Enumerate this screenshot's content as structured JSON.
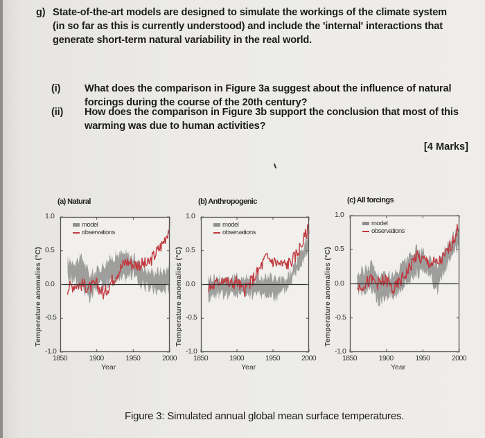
{
  "question": {
    "label": "g)",
    "lines": [
      "State-of-the-art models are designed to simulate the workings of the climate system",
      "(in so far as this is currently understood) and include the 'internal' interactions that",
      "generate short-term natural variability in the real world."
    ],
    "parts": [
      {
        "num": "(i)",
        "lines": [
          "What does the comparison in Figure 3a suggest about the influence of natural",
          "forcings during the course of the 20th century?"
        ]
      },
      {
        "num": "(ii)",
        "lines": [
          "How does the comparison in Figure 3b support the conclusion that most of this",
          "warming was due to human activities?"
        ]
      }
    ],
    "marks": "[4 Marks]"
  },
  "figure": {
    "caption": "Figure 3: Simulated annual global mean surface temperatures.",
    "colors": {
      "model": "#8f8f8f",
      "observations": "#c0393f",
      "frame": "#555555",
      "zero_line": "#333333"
    }
  },
  "chart_data": [
    {
      "type": "line",
      "title": "(a) Natural",
      "xlabel": "Year",
      "ylabel": "Temperature anomalies (°C)",
      "xlim": [
        1850,
        2000
      ],
      "ylim": [
        -1.0,
        1.0
      ],
      "xticks": [
        "1850",
        "1900",
        "1950",
        "2000"
      ],
      "yticks": [
        "1.0",
        "0.5",
        "0.0",
        "-0.5",
        "-1.0"
      ],
      "legend": [
        "model",
        "observations"
      ],
      "legend_position": "upper left",
      "grid": false,
      "x": [
        1860,
        1870,
        1880,
        1890,
        1900,
        1910,
        1920,
        1930,
        1940,
        1950,
        1960,
        1970,
        1980,
        1990,
        2000
      ],
      "series": [
        {
          "name": "model",
          "style": "band",
          "low": [
            0.1,
            0.05,
            0.0,
            -0.25,
            -0.05,
            0.0,
            0.05,
            0.05,
            0.1,
            0.15,
            0.0,
            -0.05,
            -0.1,
            -0.1,
            -0.05
          ],
          "high": [
            0.35,
            0.35,
            0.4,
            0.15,
            0.2,
            0.3,
            0.4,
            0.45,
            0.45,
            0.4,
            0.3,
            0.2,
            0.2,
            0.2,
            0.25
          ]
        },
        {
          "name": "observations",
          "values": [
            -0.05,
            0.0,
            0.0,
            -0.05,
            0.0,
            -0.15,
            0.05,
            0.2,
            0.35,
            0.3,
            0.3,
            0.3,
            0.45,
            0.6,
            0.85
          ]
        }
      ]
    },
    {
      "type": "line",
      "title": "(b) Anthropogenic",
      "xlabel": "Year",
      "ylabel": "Temperature anomalies (°C)",
      "xlim": [
        1850,
        2000
      ],
      "ylim": [
        -1.0,
        1.0
      ],
      "xticks": [
        "1850",
        "1900",
        "1950",
        "2000"
      ],
      "yticks": [
        "1.0",
        "0.5",
        "0.0",
        "-0.5",
        "-1.0"
      ],
      "legend": [
        "model",
        "observations"
      ],
      "legend_position": "upper left",
      "grid": false,
      "x": [
        1860,
        1870,
        1880,
        1890,
        1900,
        1910,
        1920,
        1930,
        1940,
        1950,
        1960,
        1970,
        1980,
        1990,
        2000
      ],
      "series": [
        {
          "name": "model",
          "style": "band",
          "low": [
            -0.2,
            -0.15,
            -0.15,
            -0.15,
            -0.15,
            -0.15,
            -0.15,
            -0.15,
            -0.15,
            -0.2,
            -0.15,
            -0.05,
            0.15,
            0.35,
            0.55
          ],
          "high": [
            0.1,
            0.1,
            0.1,
            0.1,
            0.1,
            0.1,
            0.1,
            0.1,
            0.1,
            0.1,
            0.05,
            0.1,
            0.3,
            0.5,
            0.75
          ]
        },
        {
          "name": "observations",
          "values": [
            -0.05,
            0.0,
            0.1,
            0.0,
            0.05,
            -0.1,
            0.05,
            0.2,
            0.4,
            0.35,
            0.3,
            0.3,
            0.4,
            0.6,
            0.85
          ]
        }
      ]
    },
    {
      "type": "line",
      "title": "(c) All forcings",
      "xlabel": "Year",
      "ylabel": "Temperature anomalies (°C)",
      "xlim": [
        1850,
        2000
      ],
      "ylim": [
        -1.0,
        1.0
      ],
      "xticks": [
        "1850",
        "1900",
        "1950",
        "2000"
      ],
      "yticks": [
        "1.0",
        "0.5",
        "0.0",
        "-0.5",
        "-1.0"
      ],
      "legend": [
        "model",
        "observations"
      ],
      "legend_position": "upper left",
      "grid": false,
      "x": [
        1860,
        1870,
        1880,
        1890,
        1900,
        1910,
        1920,
        1930,
        1940,
        1950,
        1960,
        1970,
        1980,
        1990,
        2000
      ],
      "series": [
        {
          "name": "model",
          "style": "band",
          "low": [
            -0.1,
            -0.1,
            -0.1,
            -0.3,
            -0.15,
            -0.2,
            -0.05,
            0.05,
            0.15,
            0.15,
            0.1,
            -0.1,
            0.2,
            0.4,
            0.6
          ],
          "high": [
            0.15,
            0.2,
            0.3,
            0.1,
            0.15,
            0.1,
            0.25,
            0.35,
            0.5,
            0.45,
            0.35,
            0.3,
            0.5,
            0.65,
            0.9
          ]
        },
        {
          "name": "observations",
          "values": [
            -0.05,
            0.0,
            0.05,
            0.0,
            0.05,
            -0.1,
            0.05,
            0.2,
            0.4,
            0.35,
            0.3,
            0.3,
            0.4,
            0.6,
            0.85
          ]
        }
      ]
    }
  ]
}
